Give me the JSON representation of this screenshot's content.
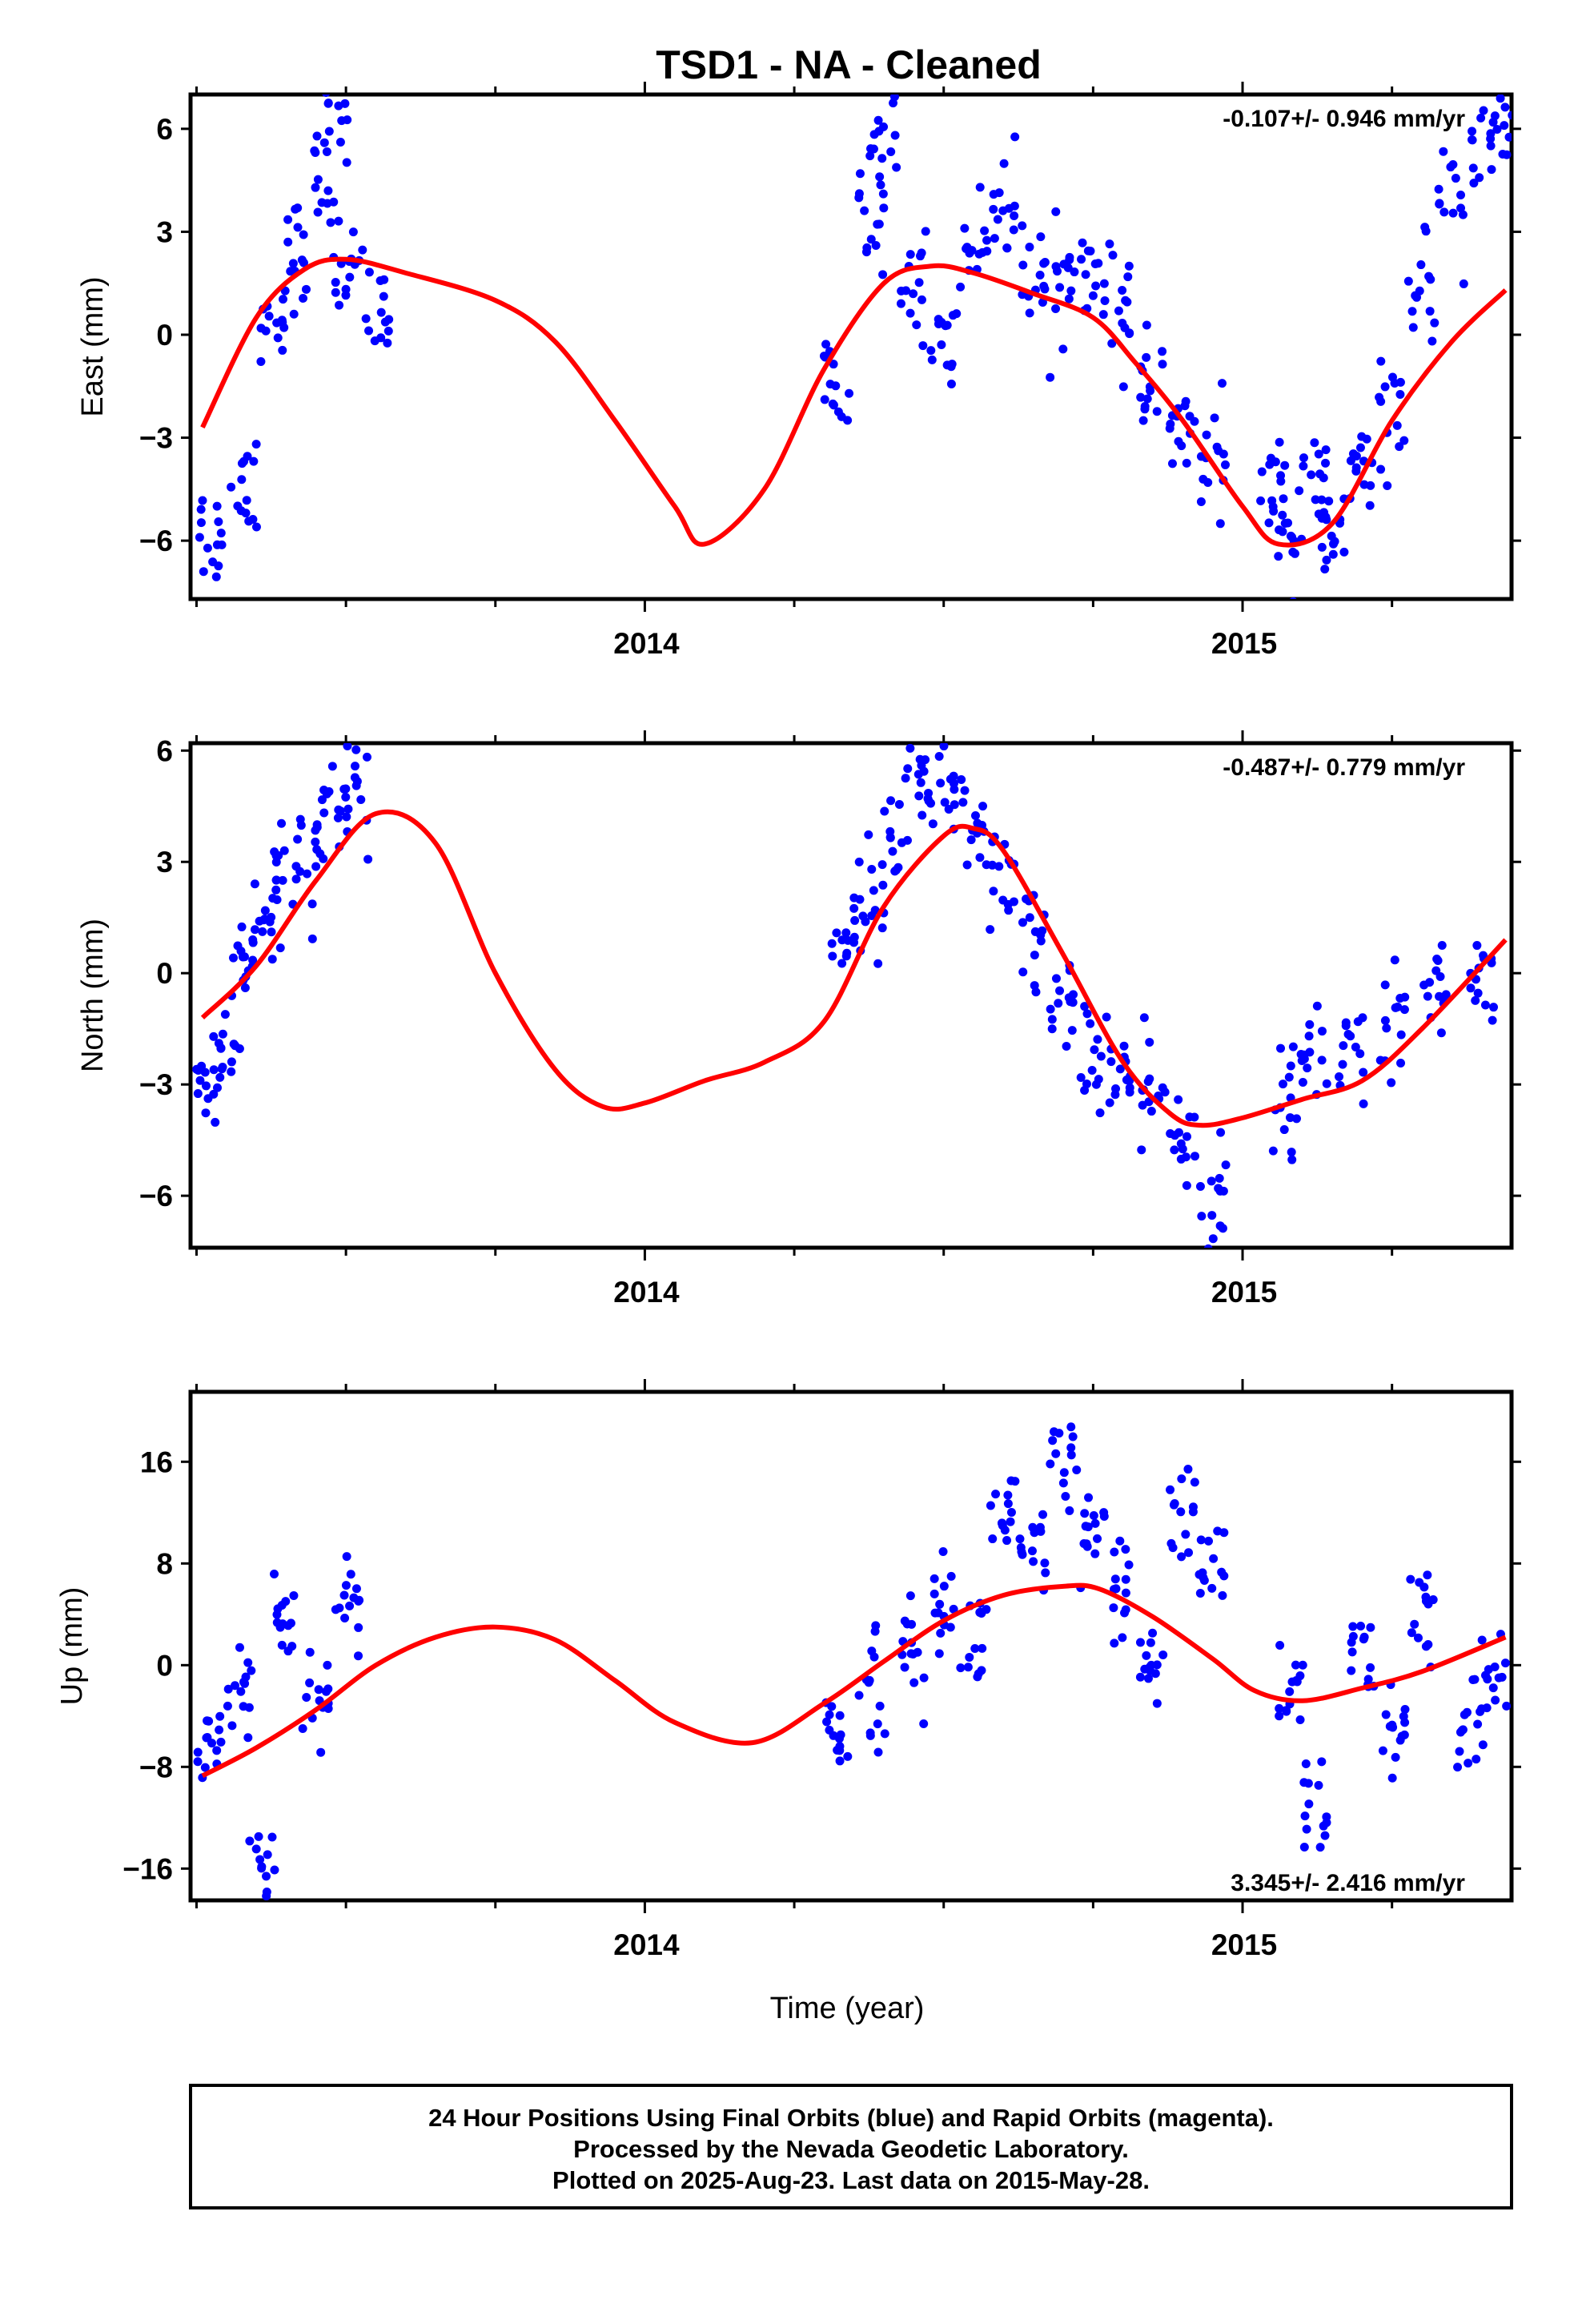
{
  "title": "TSD1  - NA - Cleaned",
  "xlabel": "Time (year)",
  "footer": [
    "24 Hour Positions Using Final Orbits (blue) and Rapid Orbits (magenta).",
    "Processed by the Nevada Geodetic Laboratory.",
    "Plotted on 2025-Aug-23. Last data on 2015-May-28."
  ],
  "colors": {
    "final_orbits": "#0000ff",
    "model": "#ff0000"
  },
  "chart_data": [
    {
      "type": "scatter",
      "ylabel": "East (mm)",
      "rate": "-0.107+/- 0.946 mm/yr",
      "xlim": [
        2013.24,
        2015.45
      ],
      "ylim": [
        -7.7,
        7.0
      ],
      "yticks": [
        6,
        3,
        0,
        -3,
        -6
      ],
      "xtick_labels": [
        "2014",
        "2015"
      ],
      "points": [
        [
          2013.27,
          -5.8
        ],
        [
          2013.33,
          -4.2
        ],
        [
          2013.38,
          0.5
        ],
        [
          2013.42,
          2.5
        ],
        [
          2013.46,
          4.5
        ],
        [
          2013.48,
          6.8
        ],
        [
          2013.5,
          2.0
        ],
        [
          2013.55,
          0.8
        ],
        [
          2014.32,
          -1.8
        ],
        [
          2014.38,
          3.5
        ],
        [
          2014.4,
          5.6
        ],
        [
          2014.45,
          1.5
        ],
        [
          2014.5,
          0.0
        ],
        [
          2014.55,
          2.6
        ],
        [
          2014.6,
          3.5
        ],
        [
          2014.65,
          2.0
        ],
        [
          2014.7,
          1.5
        ],
        [
          2014.75,
          1.8
        ],
        [
          2014.8,
          0.5
        ],
        [
          2014.85,
          -1.5
        ],
        [
          2014.9,
          -3.0
        ],
        [
          2014.95,
          -3.6
        ],
        [
          2015.05,
          -4.5
        ],
        [
          2015.08,
          -5.5
        ],
        [
          2015.12,
          -4.5
        ],
        [
          2015.15,
          -6.0
        ],
        [
          2015.2,
          -4.0
        ],
        [
          2015.25,
          -2.5
        ],
        [
          2015.3,
          1.5
        ],
        [
          2015.35,
          3.5
        ],
        [
          2015.4,
          5.5
        ],
        [
          2015.44,
          6.7
        ]
      ],
      "series": [
        {
          "name": "",
          "x": [
            2013.26,
            2013.35,
            2013.43,
            2013.5,
            2013.6,
            2013.75,
            2013.85,
            2013.95,
            2014.05,
            2014.1,
            2014.2,
            2014.3,
            2014.4,
            2014.48,
            2014.55,
            2014.65,
            2014.75,
            2014.82,
            2014.9,
            2015.0,
            2015.06,
            2015.15,
            2015.25,
            2015.35,
            2015.44
          ],
          "values": [
            -2.7,
            0.5,
            1.9,
            2.2,
            1.8,
            1.0,
            -0.2,
            -2.5,
            -5.0,
            -6.1,
            -4.5,
            -1.0,
            1.5,
            2.0,
            1.8,
            1.2,
            0.5,
            -0.8,
            -2.5,
            -5.0,
            -6.1,
            -5.5,
            -2.5,
            -0.2,
            1.3
          ]
        }
      ]
    },
    {
      "type": "scatter",
      "ylabel": "North (mm)",
      "rate": "-0.487+/- 0.779 mm/yr",
      "xlim": [
        2013.24,
        2015.45
      ],
      "ylim": [
        -7.4,
        6.2
      ],
      "yticks": [
        6,
        3,
        0,
        -3,
        -6
      ],
      "xtick_labels": [
        "2014",
        "2015"
      ],
      "points": [
        [
          2013.27,
          -3.0
        ],
        [
          2013.3,
          -2.0
        ],
        [
          2013.33,
          0.5
        ],
        [
          2013.37,
          1.5
        ],
        [
          2013.4,
          2.5
        ],
        [
          2013.44,
          3.0
        ],
        [
          2013.48,
          4.5
        ],
        [
          2013.52,
          5.0
        ],
        [
          2014.33,
          1.0
        ],
        [
          2014.38,
          2.0
        ],
        [
          2014.42,
          3.5
        ],
        [
          2014.46,
          5.5
        ],
        [
          2014.5,
          5.0
        ],
        [
          2014.55,
          4.0
        ],
        [
          2014.6,
          2.5
        ],
        [
          2014.65,
          1.0
        ],
        [
          2014.7,
          -1.0
        ],
        [
          2014.75,
          -2.0
        ],
        [
          2014.8,
          -2.8
        ],
        [
          2014.85,
          -3.5
        ],
        [
          2014.9,
          -4.5
        ],
        [
          2014.95,
          -6.0
        ],
        [
          2015.07,
          -3.5
        ],
        [
          2015.12,
          -2.5
        ],
        [
          2015.18,
          -2.0
        ],
        [
          2015.25,
          -1.5
        ],
        [
          2015.32,
          -0.5
        ],
        [
          2015.4,
          0.0
        ]
      ],
      "series": [
        {
          "name": "",
          "x": [
            2013.26,
            2013.35,
            2013.45,
            2013.55,
            2013.65,
            2013.75,
            2013.85,
            2013.93,
            2014.0,
            2014.1,
            2014.2,
            2014.3,
            2014.4,
            2014.5,
            2014.55,
            2014.6,
            2014.7,
            2014.8,
            2014.88,
            2014.93,
            2015.0,
            2015.1,
            2015.2,
            2015.3,
            2015.44
          ],
          "values": [
            -1.2,
            0.2,
            2.5,
            4.3,
            3.5,
            0.0,
            -2.6,
            -3.6,
            -3.5,
            -2.9,
            -2.4,
            -1.3,
            1.8,
            3.7,
            3.9,
            3.3,
            0.5,
            -2.4,
            -3.8,
            -4.1,
            -3.9,
            -3.4,
            -2.9,
            -1.5,
            0.9
          ]
        }
      ]
    },
    {
      "type": "scatter",
      "ylabel": "Up (mm)",
      "rate": "3.345+/- 2.416 mm/yr",
      "xlim": [
        2013.24,
        2015.45
      ],
      "ylim": [
        -18.5,
        21.5
      ],
      "yticks": [
        16,
        8,
        0,
        -8,
        -16
      ],
      "xtick_labels": [
        "2014",
        "2015"
      ],
      "points": [
        [
          2013.27,
          -6.0
        ],
        [
          2013.32,
          -2.0
        ],
        [
          2013.36,
          -15.5
        ],
        [
          2013.4,
          4.0
        ],
        [
          2013.45,
          -3.0
        ],
        [
          2013.5,
          5.0
        ],
        [
          2014.32,
          -5.0
        ],
        [
          2014.38,
          -2.0
        ],
        [
          2014.45,
          1.0
        ],
        [
          2014.5,
          5.0
        ],
        [
          2014.55,
          2.0
        ],
        [
          2014.6,
          12.0
        ],
        [
          2014.65,
          8.0
        ],
        [
          2014.7,
          15.0
        ],
        [
          2014.75,
          10.0
        ],
        [
          2014.8,
          5.0
        ],
        [
          2014.85,
          0.0
        ],
        [
          2014.9,
          12.0
        ],
        [
          2014.95,
          8.0
        ],
        [
          2015.08,
          -3.0
        ],
        [
          2015.12,
          -10.0
        ],
        [
          2015.2,
          0.0
        ],
        [
          2015.25,
          -5.0
        ],
        [
          2015.3,
          3.0
        ],
        [
          2015.38,
          -6.0
        ],
        [
          2015.42,
          -1.0
        ]
      ],
      "series": [
        {
          "name": "",
          "x": [
            2013.26,
            2013.35,
            2013.45,
            2013.55,
            2013.65,
            2013.75,
            2013.85,
            2013.95,
            2014.05,
            2014.18,
            2014.3,
            2014.4,
            2014.5,
            2014.6,
            2014.7,
            2014.76,
            2014.85,
            2014.95,
            2015.02,
            2015.1,
            2015.2,
            2015.3,
            2015.44
          ],
          "values": [
            -8.7,
            -6.5,
            -3.5,
            0.0,
            2.2,
            3.0,
            2.0,
            -1.2,
            -4.5,
            -6.1,
            -3.0,
            0.3,
            3.5,
            5.5,
            6.2,
            6.0,
            3.8,
            0.5,
            -2.0,
            -2.8,
            -1.8,
            -0.5,
            2.2
          ]
        }
      ]
    }
  ]
}
